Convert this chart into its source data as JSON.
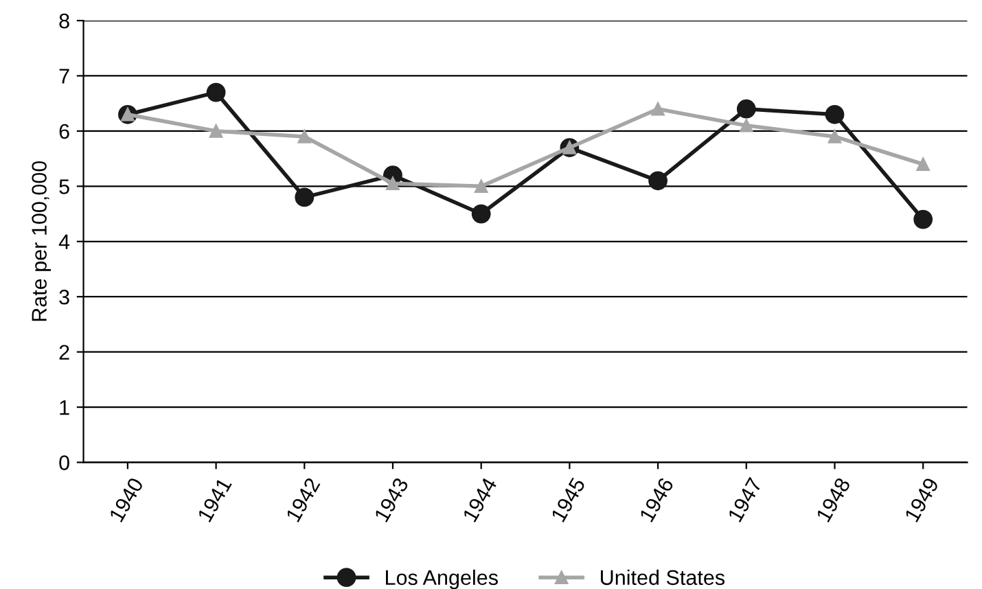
{
  "chart_data": {
    "type": "line",
    "ylabel": "Rate per 100,000",
    "categories": [
      "1940",
      "1941",
      "1942",
      "1943",
      "1944",
      "1945",
      "1946",
      "1947",
      "1948",
      "1949"
    ],
    "series": [
      {
        "name": "Los Angeles",
        "color": "#1a1a1a",
        "marker": "circle",
        "values": [
          6.3,
          6.7,
          4.8,
          5.2,
          4.5,
          5.7,
          5.1,
          6.4,
          6.3,
          4.4
        ]
      },
      {
        "name": "United States",
        "color": "#a6a6a6",
        "marker": "triangle",
        "values": [
          6.3,
          6.0,
          5.9,
          5.05,
          5.0,
          5.7,
          6.4,
          6.1,
          5.9,
          5.4
        ]
      }
    ],
    "ylim": [
      0,
      8
    ],
    "yticks": [
      0,
      1,
      2,
      3,
      4,
      5,
      6,
      7,
      8
    ],
    "grid": "y",
    "legend": "bottom",
    "line_style": "solid"
  }
}
